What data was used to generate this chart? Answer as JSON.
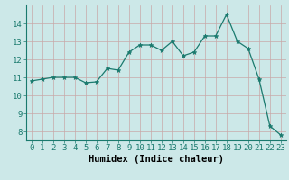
{
  "x": [
    0,
    1,
    2,
    3,
    4,
    5,
    6,
    7,
    8,
    9,
    10,
    11,
    12,
    13,
    14,
    15,
    16,
    17,
    18,
    19,
    20,
    21,
    22,
    23
  ],
  "y": [
    10.8,
    10.9,
    11.0,
    11.0,
    11.0,
    10.7,
    10.75,
    11.5,
    11.4,
    12.4,
    12.8,
    12.8,
    12.5,
    13.0,
    12.2,
    12.4,
    13.3,
    13.3,
    14.5,
    13.0,
    12.6,
    10.9,
    8.3,
    7.8
  ],
  "xlabel": "Humidex (Indice chaleur)",
  "xlim": [
    -0.5,
    23.5
  ],
  "ylim": [
    7.5,
    15.0
  ],
  "yticks": [
    8,
    9,
    10,
    11,
    12,
    13,
    14
  ],
  "xticks": [
    0,
    1,
    2,
    3,
    4,
    5,
    6,
    7,
    8,
    9,
    10,
    11,
    12,
    13,
    14,
    15,
    16,
    17,
    18,
    19,
    20,
    21,
    22,
    23
  ],
  "line_color": "#1a7a6e",
  "marker": "*",
  "marker_color": "#1a7a6e",
  "bg_color": "#cce8e8",
  "grid_color_major": "#c8a8a8",
  "grid_color_minor": "#ddd0d0",
  "xlabel_fontsize": 7.5,
  "tick_fontsize": 6.5
}
